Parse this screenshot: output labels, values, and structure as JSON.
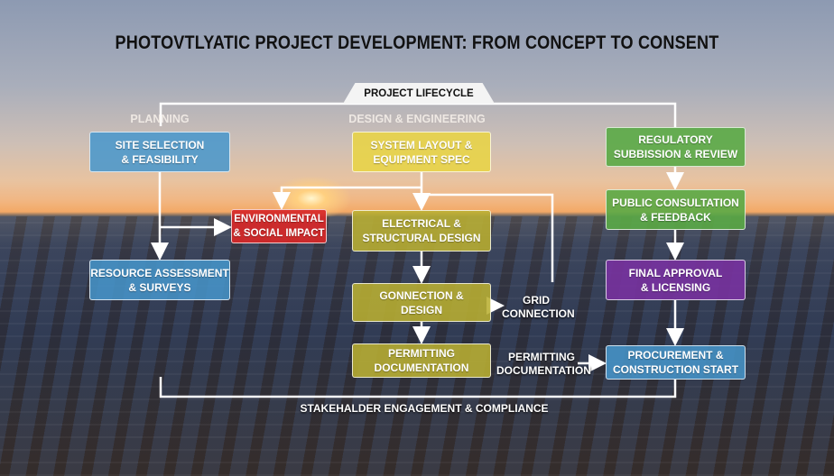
{
  "title": "PHOTOVTLYATIC PROJECT DEVELOPMENT: FROM CONCEPT TO CONSENT",
  "lifecycle_label": "PROJECT LIFECYCLE",
  "sections": {
    "planning": "PLANNING",
    "design": "DESIGN & ENGINEERING"
  },
  "boxes": {
    "site_selection": "SITE SELECTION\n& FEASIBILITY",
    "resource_assessment": "RESOURCE ASSESSMENT\n& SURVEYS",
    "environmental": "ENVIRONMENTAL\n& SOCIAL IMPACT",
    "system_layout": "SYSTEM LAYOUT &\nEQUIPMENT SPEC",
    "electrical": "ELECTRICAL &\nSTRUCTURAL DESIGN",
    "connection": "GONNECTION &\nDESIGN",
    "permitting": "PERMITTING\nDOCUMENTATION",
    "regulatory": "REGULATORY\nSUBBISSION & REVIEW",
    "public": "PUBLIC CONSULTATION\n& FEEDBACK",
    "final": "FINAL APPROVAL\n& LICENSING",
    "procurement": "PROCUREMENT &\nCONSTRUCTION START"
  },
  "notes": {
    "grid": "GRID\nCONNECTION",
    "permitting": "PERMITTING\nDOCUMENTATION"
  },
  "footer": "STAKEHALDER ENGAGEMENT & COMPLIANCE",
  "colors": {
    "planning": "#4696cd",
    "environmental": "#d72828",
    "design": "#e8d446",
    "regulatory": "#5aaa46",
    "approval": "#7832a0"
  }
}
